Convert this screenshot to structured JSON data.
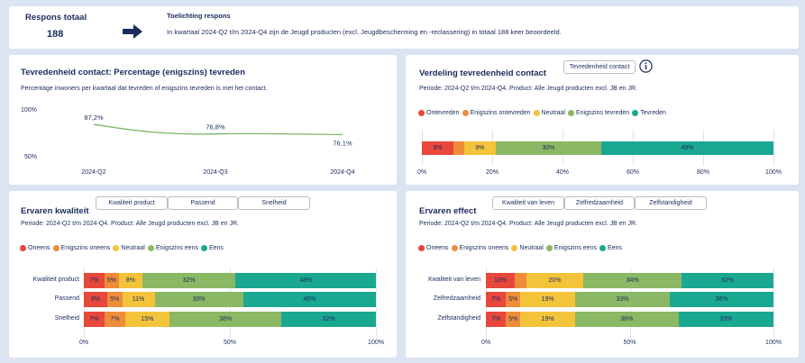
{
  "header": {
    "respons_title": "Respons totaal",
    "respons_count": "188",
    "toelichting_title": "Toelichting respons",
    "toelichting_text": "In kwartaal 2024-Q2 t/m 2024-Q4 zijn de Jeugd producten (excl. Jeugdbescherming en -reclassering) in totaal 188 keer beoordeeld."
  },
  "colors": {
    "red": "#e8473b",
    "orange": "#ef8c3a",
    "yellow": "#f3c33a",
    "lightgreen": "#8ab864",
    "teal": "#1aa891",
    "line": "#7bb76b",
    "navy": "#1a2b5c"
  },
  "icons": {
    "arrow": "arrow-right-icon",
    "info": "info-icon"
  },
  "tevredenheid": {
    "title": "Tevredenheid contact: Percentage (enigszins) tevreden",
    "subtitle": "Percentage inwoners per kwartaal dat tevreden of enigszins tevreden is met het contact.",
    "y_top": "100%",
    "y_bottom": "50%",
    "point_labels": [
      "87,2%",
      "76,8%",
      "76,1%"
    ]
  },
  "verdeling": {
    "title": "Verdeling tevredenheid contact",
    "button": "Tevredenheid contact",
    "period": "Periode: 2024-Q2 t/m 2024-Q4. Product: Alle Jeugd producten excl. JB en JR.",
    "legend": [
      "Ontevreden",
      "Enigszins ontevreden",
      "Neutraal",
      "Enigszins tevreden",
      "Tevreden"
    ],
    "segment_labels": [
      "9%",
      "",
      "9%",
      "30%",
      "49%"
    ],
    "x_ticks": [
      "0%",
      "20%",
      "40%",
      "60%",
      "80%",
      "100%"
    ]
  },
  "kwaliteit": {
    "title": "Ervaren kwaliteit",
    "tabs": [
      "Kwaliteit product",
      "Passend",
      "Snelheid"
    ],
    "period": "Periode: 2024-Q2 t/m 2024-Q4. Product: Alle Jeugd producten excl. JB en JR.",
    "legend": [
      "Oneens",
      "Enigszins oneens",
      "Neutraal",
      "Enigszins eens",
      "Eens"
    ],
    "x_ticks": [
      "0%",
      "50%",
      "100%"
    ],
    "rows": [
      {
        "label": "Kwaliteit product",
        "labels": [
          "7%",
          "5%",
          "8%",
          "32%",
          "48%"
        ]
      },
      {
        "label": "Passend",
        "labels": [
          "8%",
          "5%",
          "11%",
          "30%",
          "45%"
        ]
      },
      {
        "label": "Snelheid",
        "labels": [
          "7%",
          "7%",
          "15%",
          "38%",
          "32%"
        ]
      }
    ]
  },
  "effect": {
    "title": "Ervaren effect",
    "tabs": [
      "Kwaliteit van leven",
      "Zelfredzaamheid",
      "Zelfstandigheid"
    ],
    "period": "Periode: 2024-Q2 t/m 2024-Q4. Product: Alle Jeugd producten excl. JB en JR.",
    "legend": [
      "Oneens",
      "Enigszins oneens",
      "Neutraal",
      "Enigszins eens",
      "Eens"
    ],
    "x_ticks": [
      "0%",
      "50%",
      "100%"
    ],
    "rows": [
      {
        "label": "Kwaliteit van leven",
        "labels": [
          "10%",
          "",
          "20%",
          "34%",
          "32%"
        ]
      },
      {
        "label": "Zelfredzaamheid",
        "labels": [
          "7%",
          "5%",
          "19%",
          "33%",
          "36%"
        ]
      },
      {
        "label": "Zelfstandigheid",
        "labels": [
          "7%",
          "5%",
          "19%",
          "36%",
          "33%"
        ]
      }
    ]
  },
  "chart_data": [
    {
      "type": "line",
      "x": [
        "2024-Q2",
        "2024-Q3",
        "2024-Q4"
      ],
      "series": [
        {
          "values": [
            87.2,
            76.8,
            76.1
          ]
        }
      ],
      "ylim": [
        50,
        100
      ]
    },
    {
      "type": "bar",
      "orientation": "horizontal-stacked",
      "categories": [
        ""
      ],
      "series": [
        {
          "name": "Ontevreden",
          "values": [
            9
          ]
        },
        {
          "name": "Enigszins ontevreden",
          "values": [
            3
          ]
        },
        {
          "name": "Neutraal",
          "values": [
            9
          ]
        },
        {
          "name": "Enigszins tevreden",
          "values": [
            30
          ]
        },
        {
          "name": "Tevreden",
          "values": [
            49
          ]
        }
      ],
      "xlim": [
        0,
        100
      ]
    },
    {
      "type": "bar",
      "orientation": "horizontal-stacked",
      "categories": [
        "Kwaliteit product",
        "Passend",
        "Snelheid"
      ],
      "series": [
        {
          "name": "Oneens",
          "values": [
            7,
            8,
            7
          ]
        },
        {
          "name": "Enigszins oneens",
          "values": [
            5,
            5,
            7
          ]
        },
        {
          "name": "Neutraal",
          "values": [
            8,
            11,
            15
          ]
        },
        {
          "name": "Enigszins eens",
          "values": [
            32,
            30,
            38
          ]
        },
        {
          "name": "Eens",
          "values": [
            48,
            45,
            32
          ]
        }
      ],
      "xlim": [
        0,
        100
      ]
    },
    {
      "type": "bar",
      "orientation": "horizontal-stacked",
      "categories": [
        "Kwaliteit van leven",
        "Zelfredzaamheid",
        "Zelfstandigheid"
      ],
      "series": [
        {
          "name": "Oneens",
          "values": [
            10,
            7,
            7
          ]
        },
        {
          "name": "Enigszins oneens",
          "values": [
            4,
            5,
            5
          ]
        },
        {
          "name": "Neutraal",
          "values": [
            20,
            19,
            19
          ]
        },
        {
          "name": "Enigszins eens",
          "values": [
            34,
            33,
            36
          ]
        },
        {
          "name": "Eens",
          "values": [
            32,
            36,
            33
          ]
        }
      ],
      "xlim": [
        0,
        100
      ]
    }
  ]
}
